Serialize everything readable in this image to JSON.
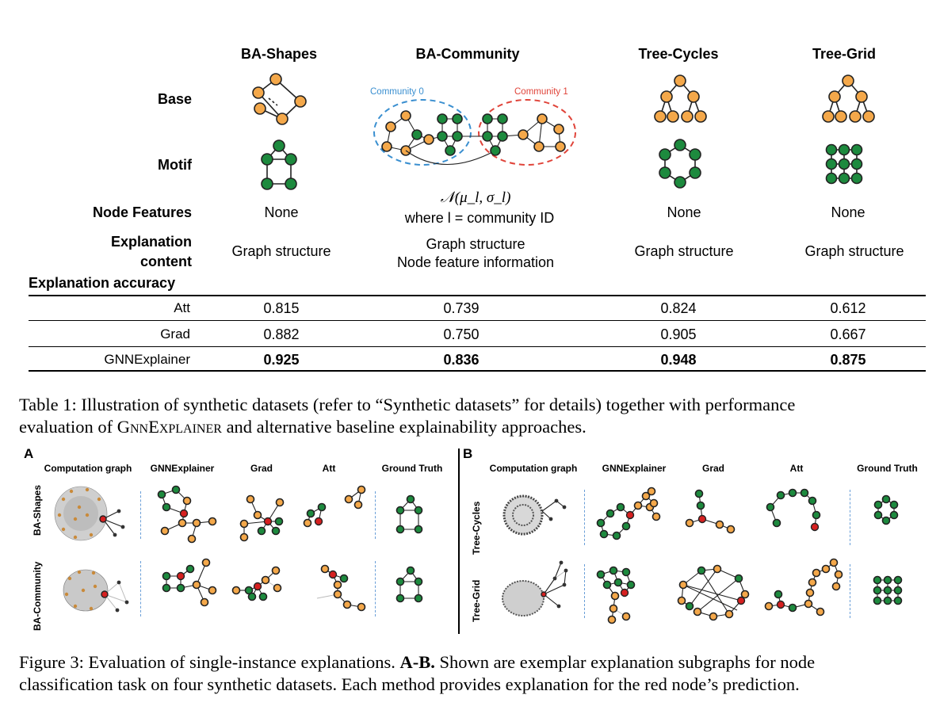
{
  "table1": {
    "columns": [
      "BA-Shapes",
      "BA-Community",
      "Tree-Cycles",
      "Tree-Grid"
    ],
    "row_labels": {
      "base": "Base",
      "motif": "Motif",
      "node_features": "Node Features",
      "explanation_content_1": "Explanation",
      "explanation_content_2": "content",
      "explanation_accuracy": "Explanation accuracy"
    },
    "community_labels": [
      "Community 0",
      "Community 1"
    ],
    "node_features": {
      "ba_shapes": "None",
      "ba_community_formula": "𝒩(μ_l, σ_l)",
      "ba_community_note": "where l = community ID",
      "tree_cycles": "None",
      "tree_grid": "None"
    },
    "explanation_content": {
      "ba_shapes": "Graph structure",
      "ba_community_1": "Graph structure",
      "ba_community_2": "Node feature information",
      "tree_cycles": "Graph structure",
      "tree_grid": "Graph structure"
    },
    "accuracy_rows": [
      {
        "method": "Att",
        "values": [
          "0.815",
          "0.739",
          "0.824",
          "0.612"
        ]
      },
      {
        "method": "Grad",
        "values": [
          "0.882",
          "0.750",
          "0.905",
          "0.667"
        ]
      },
      {
        "method": "GNNExplainer",
        "values": [
          "0.925",
          "0.836",
          "0.948",
          "0.875"
        ]
      }
    ]
  },
  "caption_table1": {
    "line1": "Table 1: Illustration of synthetic datasets (refer to “Synthetic datasets” for details) together with performance",
    "line2_pre": "evaluation of ",
    "line2_sc": "GnnExplainer",
    "line2_post": " and alternative baseline explainability approaches."
  },
  "figure3": {
    "panel_a_label": "A",
    "panel_b_label": "B",
    "headers_a": [
      "Computation graph",
      "GNNExplainer",
      "Grad",
      "Att",
      "Ground Truth"
    ],
    "headers_b": [
      "Computation graph",
      "GNNExplainer",
      "Grad",
      "Att",
      "Ground Truth"
    ],
    "rows_a": [
      "BA-Shapes",
      "BA-Community"
    ],
    "rows_b": [
      "Tree-Cycles",
      "Tree-Grid"
    ]
  },
  "caption_fig3": {
    "line1_pre": "Figure 3: Evaluation of single-instance explanations. ",
    "line1_bold": "A-B.",
    "line1_post": " Shown are exemplar explanation subgraphs for node",
    "line2": "classification task on four synthetic datasets. Each method provides explanation for the red node’s prediction."
  },
  "colors": {
    "orange_node": "#f4a84a",
    "green_node": "#1d8a3e",
    "red_node": "#d62020",
    "community0": "#3a8fd0",
    "community1": "#e0443a"
  }
}
